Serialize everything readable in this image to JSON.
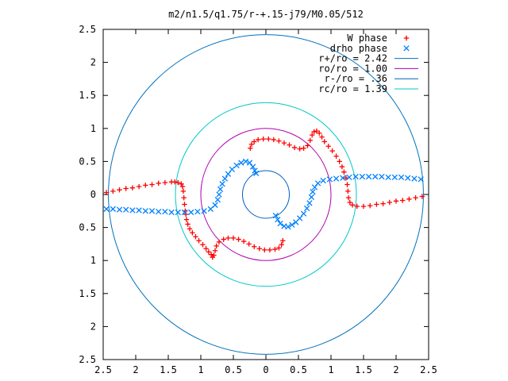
{
  "chart_data": {
    "type": "scatter",
    "title": "m2/n1.5/q1.75/r-+.15-j79/M0.05/512",
    "xlim": [
      -2.5,
      2.5
    ],
    "ylim": [
      -2.5,
      2.5
    ],
    "x_ticks": [
      -2.5,
      -2,
      -1.5,
      -1,
      -0.5,
      0,
      0.5,
      1,
      1.5,
      2,
      2.5
    ],
    "y_ticks": [
      -2.5,
      -2,
      -1.5,
      -1,
      -0.5,
      0,
      0.5,
      1,
      1.5,
      2,
      2.5
    ],
    "x_tick_labels": [
      "2.5",
      "2",
      "1.5",
      "1",
      "0.5",
      "0",
      "0.5",
      "1",
      "1.5",
      "2",
      "2.5"
    ],
    "y_tick_labels": [
      "2.5",
      "2",
      "1.5",
      "1",
      "0.5",
      "0",
      "0.5",
      "1",
      "1.5",
      "2",
      "2.5"
    ],
    "legend_position": "top-right",
    "grid": false,
    "series": [
      {
        "name": "W phase",
        "marker": "plus",
        "color": "#ff0000",
        "points": [
          [
            -2.45,
            0.03
          ],
          [
            -2.35,
            0.05
          ],
          [
            -2.25,
            0.07
          ],
          [
            -2.15,
            0.09
          ],
          [
            -2.05,
            0.1
          ],
          [
            -1.95,
            0.12
          ],
          [
            -1.85,
            0.14
          ],
          [
            -1.75,
            0.15
          ],
          [
            -1.65,
            0.17
          ],
          [
            -1.55,
            0.18
          ],
          [
            -1.45,
            0.19
          ],
          [
            -1.4,
            0.19
          ],
          [
            -1.35,
            0.18
          ],
          [
            -1.3,
            0.16
          ],
          [
            -1.28,
            0.12
          ],
          [
            -1.27,
            0.05
          ],
          [
            -1.26,
            -0.05
          ],
          [
            -1.25,
            -0.15
          ],
          [
            -1.24,
            -0.25
          ],
          [
            -1.23,
            -0.3
          ],
          [
            -1.22,
            -0.38
          ],
          [
            -1.2,
            -0.45
          ],
          [
            -1.17,
            -0.52
          ],
          [
            -1.13,
            -0.58
          ],
          [
            -1.08,
            -0.64
          ],
          [
            -1.03,
            -0.7
          ],
          [
            -0.97,
            -0.76
          ],
          [
            -0.92,
            -0.82
          ],
          [
            -0.88,
            -0.87
          ],
          [
            -0.84,
            -0.91
          ],
          [
            -0.82,
            -0.95
          ],
          [
            -0.8,
            -0.92
          ],
          [
            -0.78,
            -0.85
          ],
          [
            -0.76,
            -0.78
          ],
          [
            -0.72,
            -0.72
          ],
          [
            -0.65,
            -0.68
          ],
          [
            -0.58,
            -0.66
          ],
          [
            -0.5,
            -0.66
          ],
          [
            -0.42,
            -0.68
          ],
          [
            -0.34,
            -0.71
          ],
          [
            -0.26,
            -0.75
          ],
          [
            -0.18,
            -0.79
          ],
          [
            -0.1,
            -0.82
          ],
          [
            -0.02,
            -0.84
          ],
          [
            0.06,
            -0.84
          ],
          [
            0.14,
            -0.83
          ],
          [
            0.2,
            -0.81
          ],
          [
            0.24,
            -0.76
          ],
          [
            0.26,
            -0.7
          ],
          [
            -0.24,
            0.7
          ],
          [
            -0.22,
            0.76
          ],
          [
            -0.18,
            0.8
          ],
          [
            -0.12,
            0.83
          ],
          [
            -0.04,
            0.84
          ],
          [
            0.04,
            0.84
          ],
          [
            0.12,
            0.83
          ],
          [
            0.2,
            0.81
          ],
          [
            0.28,
            0.78
          ],
          [
            0.36,
            0.75
          ],
          [
            0.44,
            0.71
          ],
          [
            0.52,
            0.69
          ],
          [
            0.58,
            0.7
          ],
          [
            0.64,
            0.74
          ],
          [
            0.68,
            0.82
          ],
          [
            0.71,
            0.9
          ],
          [
            0.74,
            0.95
          ],
          [
            0.78,
            0.96
          ],
          [
            0.82,
            0.93
          ],
          [
            0.86,
            0.87
          ],
          [
            0.9,
            0.8
          ],
          [
            0.96,
            0.73
          ],
          [
            1.02,
            0.66
          ],
          [
            1.08,
            0.58
          ],
          [
            1.13,
            0.5
          ],
          [
            1.17,
            0.42
          ],
          [
            1.2,
            0.34
          ],
          [
            1.23,
            0.25
          ],
          [
            1.25,
            0.15
          ],
          [
            1.26,
            0.05
          ],
          [
            1.27,
            -0.05
          ],
          [
            1.29,
            -0.12
          ],
          [
            1.33,
            -0.16
          ],
          [
            1.4,
            -0.18
          ],
          [
            1.5,
            -0.18
          ],
          [
            1.6,
            -0.17
          ],
          [
            1.7,
            -0.15
          ],
          [
            1.8,
            -0.14
          ],
          [
            1.9,
            -0.12
          ],
          [
            2.0,
            -0.1
          ],
          [
            2.1,
            -0.09
          ],
          [
            2.2,
            -0.07
          ],
          [
            2.3,
            -0.05
          ],
          [
            2.4,
            -0.03
          ]
        ]
      },
      {
        "name": "drho phase",
        "marker": "cross",
        "color": "#0080ff",
        "points": [
          [
            -2.45,
            -0.22
          ],
          [
            -2.35,
            -0.22
          ],
          [
            -2.25,
            -0.23
          ],
          [
            -2.15,
            -0.23
          ],
          [
            -2.05,
            -0.24
          ],
          [
            -1.95,
            -0.24
          ],
          [
            -1.85,
            -0.25
          ],
          [
            -1.75,
            -0.25
          ],
          [
            -1.65,
            -0.26
          ],
          [
            -1.55,
            -0.26
          ],
          [
            -1.45,
            -0.27
          ],
          [
            -1.35,
            -0.27
          ],
          [
            -1.25,
            -0.27
          ],
          [
            -1.15,
            -0.27
          ],
          [
            -1.05,
            -0.26
          ],
          [
            -0.95,
            -0.25
          ],
          [
            -0.85,
            -0.22
          ],
          [
            -0.78,
            -0.16
          ],
          [
            -0.74,
            -0.08
          ],
          [
            -0.72,
            0.0
          ],
          [
            -0.7,
            0.08
          ],
          [
            -0.67,
            0.16
          ],
          [
            -0.63,
            0.24
          ],
          [
            -0.58,
            0.31
          ],
          [
            -0.52,
            0.38
          ],
          [
            -0.45,
            0.44
          ],
          [
            -0.38,
            0.48
          ],
          [
            -0.31,
            0.5
          ],
          [
            -0.25,
            0.48
          ],
          [
            -0.2,
            0.42
          ],
          [
            -0.17,
            0.36
          ],
          [
            -0.15,
            0.32
          ],
          [
            0.15,
            -0.32
          ],
          [
            0.18,
            -0.38
          ],
          [
            0.22,
            -0.44
          ],
          [
            0.28,
            -0.48
          ],
          [
            0.34,
            -0.49
          ],
          [
            0.4,
            -0.46
          ],
          [
            0.46,
            -0.42
          ],
          [
            0.52,
            -0.36
          ],
          [
            0.58,
            -0.29
          ],
          [
            0.63,
            -0.21
          ],
          [
            0.67,
            -0.13
          ],
          [
            0.7,
            -0.04
          ],
          [
            0.72,
            0.04
          ],
          [
            0.75,
            0.11
          ],
          [
            0.8,
            0.17
          ],
          [
            0.88,
            0.21
          ],
          [
            0.98,
            0.23
          ],
          [
            1.08,
            0.24
          ],
          [
            1.18,
            0.25
          ],
          [
            1.28,
            0.26
          ],
          [
            1.38,
            0.27
          ],
          [
            1.48,
            0.27
          ],
          [
            1.58,
            0.27
          ],
          [
            1.68,
            0.27
          ],
          [
            1.78,
            0.27
          ],
          [
            1.88,
            0.26
          ],
          [
            1.98,
            0.26
          ],
          [
            2.08,
            0.26
          ],
          [
            2.18,
            0.25
          ],
          [
            2.28,
            0.24
          ],
          [
            2.38,
            0.23
          ]
        ]
      },
      {
        "name": "r+/ro = 2.42",
        "kind": "circle",
        "radius": 2.42,
        "color": "#0072bd"
      },
      {
        "name": "ro/ro = 1.00",
        "kind": "circle",
        "radius": 1.0,
        "color": "#b000b0"
      },
      {
        "name": "r-/ro = .36",
        "kind": "circle",
        "radius": 0.36,
        "color": "#0060c0"
      },
      {
        "name": "rc/ro = 1.39",
        "kind": "circle",
        "radius": 1.39,
        "color": "#00c8c8"
      }
    ]
  }
}
